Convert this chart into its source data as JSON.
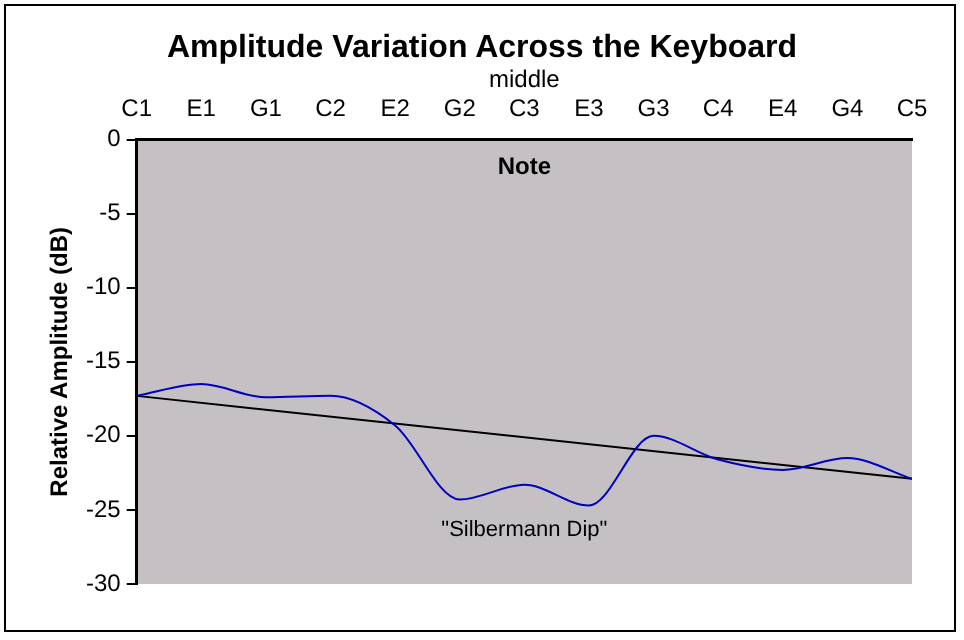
{
  "chart_data": {
    "type": "line",
    "title": "Amplitude Variation Across the Keyboard",
    "xlabel": "Note",
    "ylabel": "Relative Amplitude (dB)",
    "categories": [
      "C1",
      "E1",
      "G1",
      "C2",
      "E2",
      "G2",
      "middle\nC3",
      "E3",
      "G3",
      "C4",
      "E4",
      "G4",
      "C5"
    ],
    "series": [
      {
        "color": "#0000c0",
        "values": [
          -17.3,
          -16.5,
          -17.4,
          -17.3,
          -19.3,
          -24.3,
          -23.3,
          -24.7,
          -20.0,
          -21.6,
          -22.3,
          -21.5,
          -22.9
        ]
      },
      {
        "type": "line",
        "color": "#000000",
        "x": [
          "C1",
          "C5"
        ],
        "values": [
          -17.3,
          -22.9
        ]
      }
    ],
    "ylim": [
      -30,
      0
    ],
    "yticks": [
      -30,
      -25,
      -20,
      -15,
      -10,
      -5,
      0
    ],
    "grid": false,
    "legend": false,
    "marker": "none",
    "annotations": [
      "\"Silbermann Dip\""
    ]
  }
}
